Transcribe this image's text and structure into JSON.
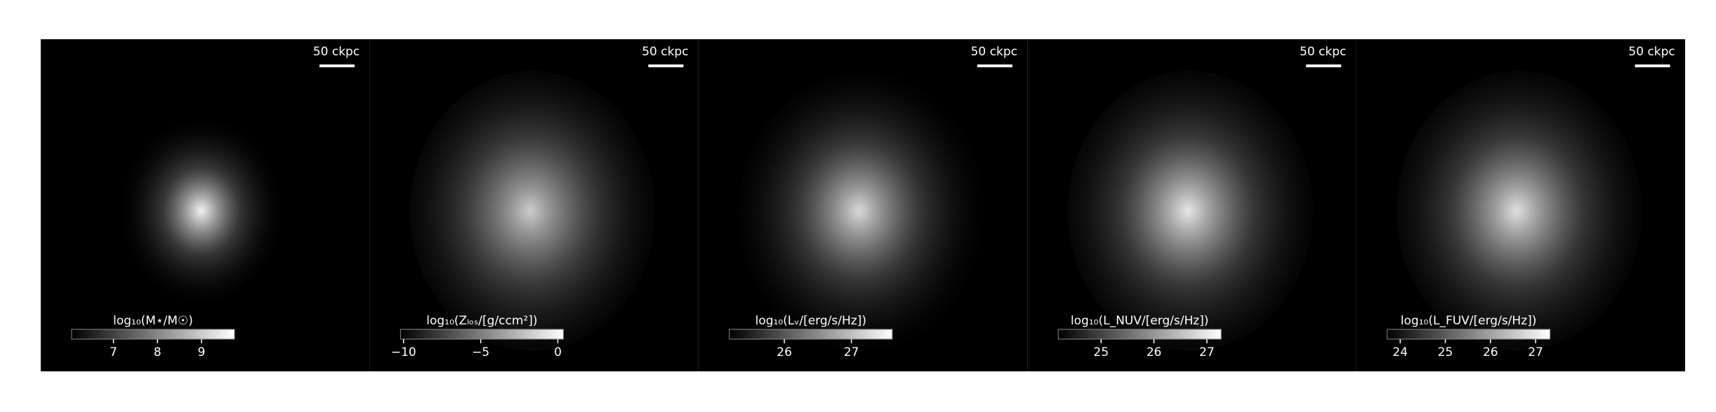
{
  "chart_data": [
    {
      "type": "image",
      "scale_bar": "50 ckpc",
      "colorbar": {
        "label": "log₁₀(M⋆/M☉)",
        "clim": [
          6.05,
          9.75
        ],
        "ticks": [
          7,
          8,
          9
        ]
      }
    },
    {
      "type": "image",
      "scale_bar": "50 ckpc",
      "colorbar": {
        "label": "log₁₀(Zₗₒₛ/[g/ccm²])",
        "clim": [
          -10.2,
          0.36
        ],
        "ticks": [
          {
            "value": -10,
            "label": "−10"
          },
          {
            "value": -5,
            "label": "−5"
          },
          0
        ]
      }
    },
    {
      "type": "image",
      "scale_bar": "50 ckpc",
      "colorbar": {
        "label": "log₁₀(Lᵥ/[erg/s/Hz])",
        "clim": [
          25.18,
          27.61
        ],
        "ticks": [
          26,
          27
        ]
      }
    },
    {
      "type": "image",
      "scale_bar": "50 ckpc",
      "colorbar": {
        "label": "log₁₀(L_NUV/[erg/s/Hz])",
        "clim": [
          24.19,
          27.27
        ],
        "ticks": [
          25,
          26,
          27
        ]
      }
    },
    {
      "type": "image",
      "scale_bar": "50 ckpc",
      "colorbar": {
        "label": "log₁₀(L_FUV/[erg/s/Hz])",
        "clim": [
          23.71,
          27.32
        ],
        "ticks": [
          24,
          25,
          26,
          27
        ]
      }
    }
  ]
}
